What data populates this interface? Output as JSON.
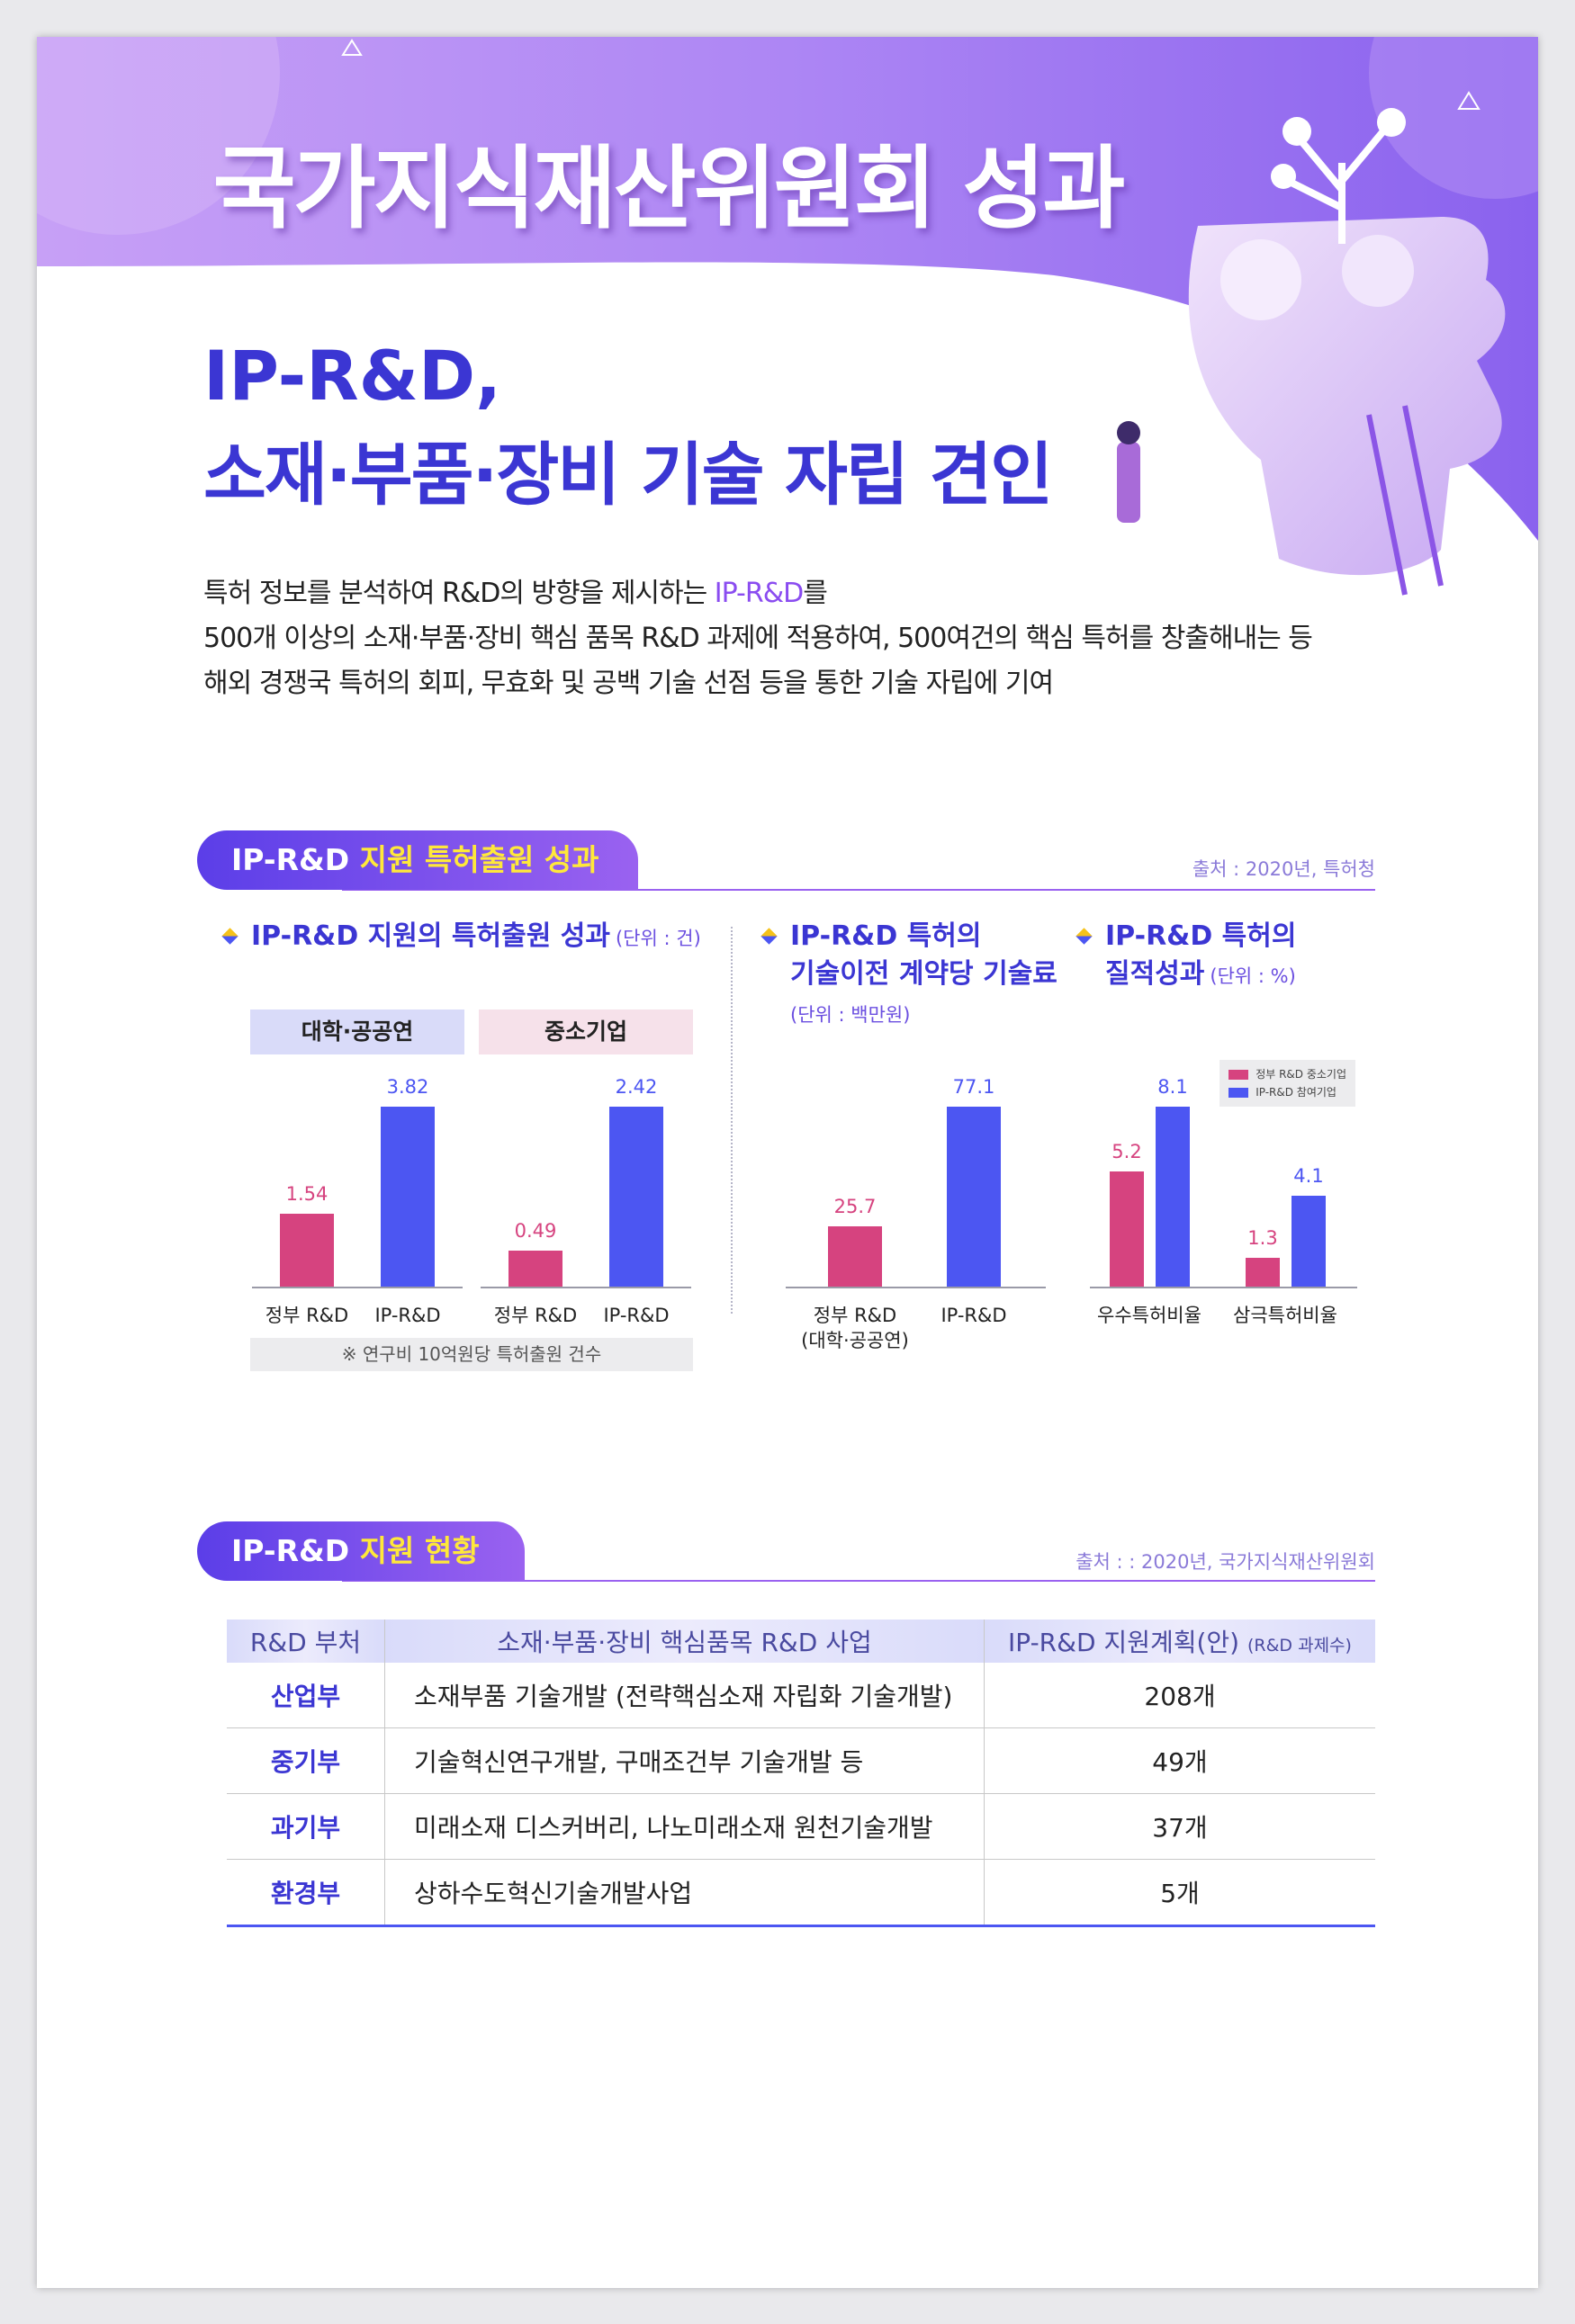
{
  "header": {
    "title": "국가지식재산위원회 성과",
    "subtitle_line1": "IP-R&D,",
    "subtitle_line2": "소재·부품·장비 기술 자립 견인"
  },
  "intro": {
    "line1_before": "특허 정보를 분석하여 R&D의 방향을 제시하는 ",
    "line1_highlight": "IP-R&D",
    "line1_after": "를",
    "line2": "500개 이상의 소재·부품·장비 핵심 품목 R&D 과제에 적용하여, 500여건의 핵심 특허를 창출해내는 등",
    "line3": "해외 경쟁국 특허의 회피, 무효화 및 공백 기술 선점 등을 통한 기술 자립에 기여"
  },
  "section1": {
    "title_lead": "IP-R&D",
    "title_highlight": "지원 특허출원 성과",
    "source": "출처 : 2020년, 특허청"
  },
  "chart_data": [
    {
      "type": "panel-bar",
      "title": "IP-R&D 지원의 특허출원 성과",
      "unit": "(단위 : 건)",
      "panels": [
        {
          "name": "대학·공공연",
          "categories": [
            "정부 R&D",
            "IP-R&D"
          ],
          "values": [
            1.54,
            3.82
          ]
        },
        {
          "name": "중소기업",
          "categories": [
            "정부 R&D",
            "IP-R&D"
          ],
          "values": [
            0.49,
            2.42
          ]
        }
      ],
      "colors": [
        "#d6437f",
        "#4c56f2"
      ],
      "note": "※ 연구비 10억원당 특허출원 건수"
    },
    {
      "type": "bar",
      "title": "IP-R&D 특허의\n기술이전 계약당 기술료",
      "unit": "(단위 : 백만원)",
      "categories": [
        "정부 R&D\n(대학·공공연)",
        "IP-R&D"
      ],
      "values": [
        25.7,
        77.1
      ],
      "colors": [
        "#d6437f",
        "#4c56f2"
      ]
    },
    {
      "type": "grouped-bar",
      "title": "IP-R&D 특허의\n질적성과",
      "unit": "(단위 : %)",
      "categories": [
        "우수특허비율",
        "삼극특허비율"
      ],
      "series": [
        {
          "name": "정부 R&D 중소기업",
          "color": "#d6437f",
          "values": [
            5.2,
            1.3
          ]
        },
        {
          "name": "IP-R&D 참여기업",
          "color": "#4c56f2",
          "values": [
            8.1,
            4.1
          ]
        }
      ],
      "legend": "upper right"
    }
  ],
  "section2": {
    "title_lead": "IP-R&D",
    "title_highlight": "지원 현황",
    "source": "출처 : : 2020년, 국가지식재산위원회"
  },
  "table": {
    "header": [
      "R&D 부처",
      "소재·부품·장비 핵심품목 R&D 사업",
      "IP-R&D 지원계획(안)"
    ],
    "header_note": "(R&D 과제수)",
    "rows": [
      [
        "산업부",
        "소재부품 기술개발 (전략핵심소재 자립화 기술개발)",
        "208개"
      ],
      [
        "중기부",
        "기술혁신연구개발, 구매조건부 기술개발 등",
        "49개"
      ],
      [
        "과기부",
        "미래소재 디스커버리, 나노미래소재 원천기술개발",
        "37개"
      ],
      [
        "환경부",
        "상하수도혁신기술개발사업",
        "5개"
      ]
    ]
  }
}
